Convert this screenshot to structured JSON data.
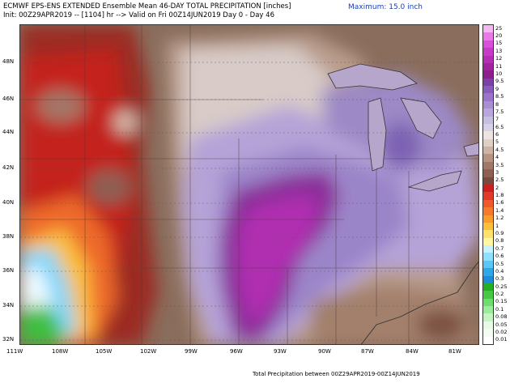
{
  "header": {
    "line1": "ECMWF EPS-ENS EXTENDED Ensemble Mean 46-DAY TOTAL PRECIPITATION [inches]",
    "line2": "Init: 00Z29APR2019 -- [1104] hr --> Valid on Fri 00Z14JUN2019  Day 0 - Day 46",
    "maximum": "Maximum: 15.0 inch"
  },
  "footer": "Total Precipitation between 00Z29APR2019-00Z14JUN2019",
  "axes": {
    "lat_labels": [
      "48N",
      "46N",
      "44N",
      "42N",
      "40N",
      "38N",
      "36N",
      "34N",
      "32N"
    ],
    "lon_labels": [
      "111W",
      "108W",
      "105W",
      "102W",
      "99W",
      "96W",
      "93W",
      "90W",
      "87W",
      "84W",
      "81W"
    ]
  },
  "legend": {
    "levels": [
      "25",
      "20",
      "15",
      "13",
      "12",
      "11",
      "10",
      "9.5",
      "9",
      "8.5",
      "8",
      "7.5",
      "7",
      "6.5",
      "6",
      "5",
      "4.5",
      "4",
      "3.5",
      "3",
      "2.5",
      "2",
      "1.8",
      "1.6",
      "1.4",
      "1.2",
      "1",
      "0.9",
      "0.8",
      "0.7",
      "0.6",
      "0.5",
      "0.4",
      "0.3",
      "0.25",
      "0.2",
      "0.15",
      "0.1",
      "0.08",
      "0.05",
      "0.02",
      "0.01"
    ],
    "colors": [
      "#f2b8f2",
      "#e87ae8",
      "#d94fd9",
      "#c83ac8",
      "#b52eb5",
      "#a024a0",
      "#8c1f8c",
      "#7b3fa8",
      "#8a5bbd",
      "#9a74c9",
      "#a98ed4",
      "#b8a6dc",
      "#c7bee3",
      "#d6d1e8",
      "#ebe4e0",
      "#e0d0c4",
      "#cdb3a3",
      "#b89382",
      "#a37767",
      "#8e5f52",
      "#7a4a40",
      "#cc1f1f",
      "#e03a2a",
      "#ee5a2a",
      "#f57a2a",
      "#fa9a2a",
      "#fdbe3a",
      "#fde26a",
      "#fff5a0",
      "#c8f0ff",
      "#8ee0ff",
      "#5ac8f5",
      "#2ea8e8",
      "#1f8ad8",
      "#24b024",
      "#46c846",
      "#6edc6e",
      "#9aeb9a",
      "#c4f4c4",
      "#e6fae6",
      "#f4fcf4",
      "#ffffff"
    ]
  }
}
